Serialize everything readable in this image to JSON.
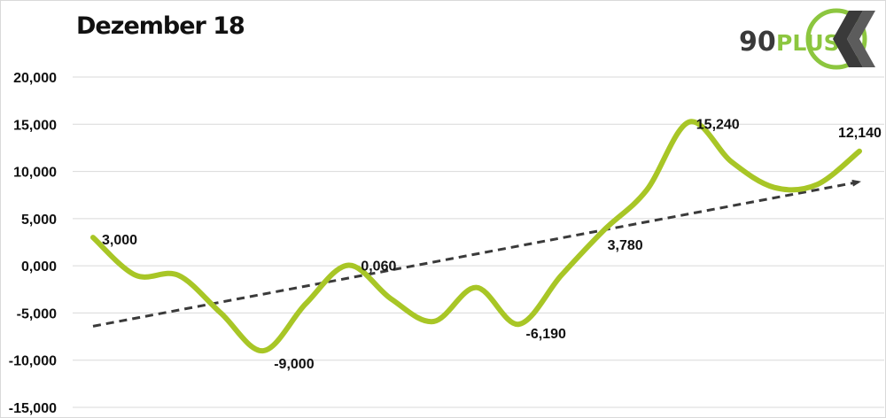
{
  "title": "Dezember 18",
  "logo": {
    "text_number": "90",
    "text_word": "PLUS",
    "accent": "#8cc63f"
  },
  "colors": {
    "line": "#a8c626",
    "trend": "#3a3a3a",
    "grid": "#d9d9d9",
    "text": "#111111"
  },
  "chart_data": {
    "type": "line",
    "title": "Dezember 18",
    "xlabel": "",
    "ylabel": "",
    "ylim": [
      -15000,
      20000
    ],
    "yticks": [
      20000,
      15000,
      10000,
      5000,
      0,
      -5000,
      -10000,
      -15000
    ],
    "ytick_labels": [
      "20,000",
      "15,000",
      "10,000",
      "5,000",
      "0,000",
      "-5,000",
      "-10,000",
      "-15,000"
    ],
    "grid": "horizontal",
    "legend": "none",
    "series": [
      {
        "x": [
          1,
          2,
          3,
          4,
          5,
          6,
          7,
          8,
          9,
          10,
          11,
          12,
          13,
          14,
          15,
          16,
          17,
          18,
          19
        ],
        "values": [
          3000,
          -1000,
          -1000,
          -5000,
          -9000,
          -4000,
          60,
          -3500,
          -5900,
          -2300,
          -6190,
          -1000,
          3780,
          8000,
          15240,
          11000,
          8300,
          8600,
          12140
        ]
      }
    ],
    "data_labels": [
      {
        "x": 1,
        "text": "3,000"
      },
      {
        "x": 5,
        "text": "-9,000"
      },
      {
        "x": 7,
        "text": "0,060"
      },
      {
        "x": 11,
        "text": "-6,190"
      },
      {
        "x": 13,
        "text": "3,780"
      },
      {
        "x": 15,
        "text": "15,240"
      },
      {
        "x": 19,
        "text": "12,140"
      }
    ],
    "trendline": {
      "style": "dashed-arrow",
      "start": [
        1,
        -6400
      ],
      "end": [
        19,
        8900
      ]
    }
  }
}
